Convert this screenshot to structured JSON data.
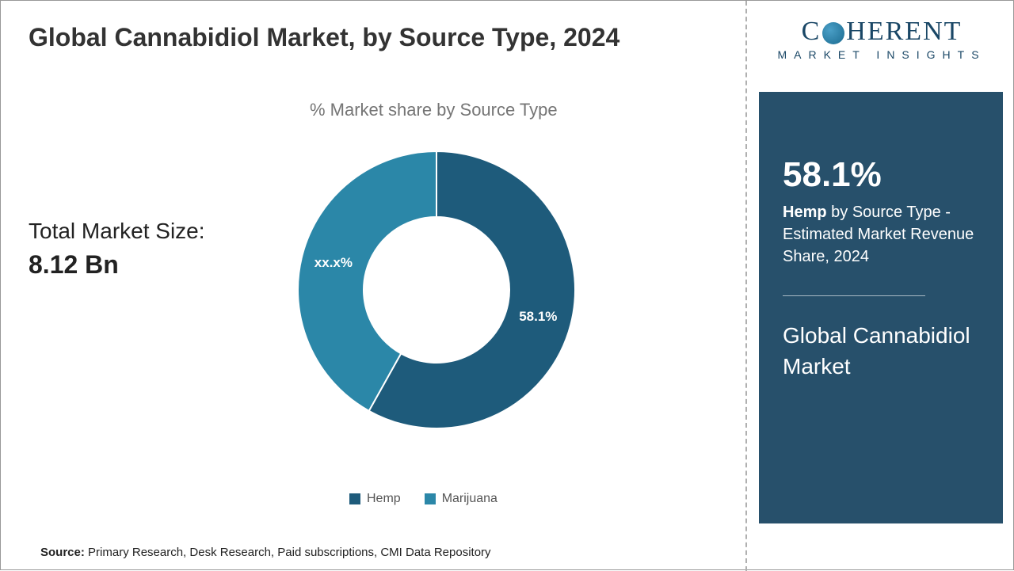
{
  "title": "Global Cannabidiol Market, by Source Type, 2024",
  "chart": {
    "type": "donut",
    "title": "% Market share by Source Type",
    "categories": [
      "Hemp",
      "Marijuana"
    ],
    "values": [
      58.1,
      41.9
    ],
    "display_labels": [
      "58.1%",
      "xx.x%"
    ],
    "colors": [
      "#1e5b7b",
      "#2b87a8"
    ],
    "inner_radius_pct": 52,
    "outer_radius_pct": 100,
    "background_color": "#ffffff",
    "title_color": "#757575",
    "label_color": "#ffffff",
    "label_fontsize": 17
  },
  "market_size": {
    "label": "Total Market Size:",
    "value": "8.12 Bn"
  },
  "legend": {
    "items": [
      {
        "label": "Hemp",
        "color": "#1e5b7b"
      },
      {
        "label": "Marijuana",
        "color": "#2b87a8"
      }
    ]
  },
  "source": {
    "prefix": "Source:",
    "text": "Primary Research, Desk Research, Paid subscriptions, CMI Data Repository"
  },
  "logo": {
    "main_left": "C",
    "main_right": "HERENT",
    "sub": "MARKET INSIGHTS"
  },
  "sidebar": {
    "stat_value": "58.1%",
    "stat_bold": "Hemp",
    "stat_rest": " by Source Type - Estimated Market Revenue Share, 2024",
    "box_title": "Global Cannabidiol Market",
    "box_bg": "#27506b"
  }
}
